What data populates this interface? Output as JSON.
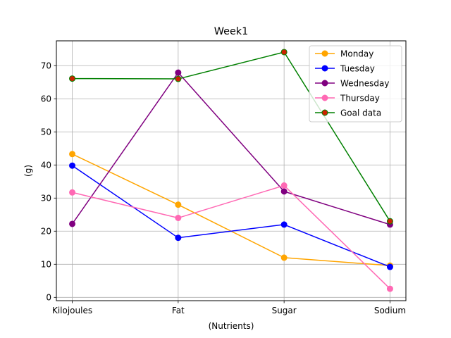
{
  "chart_data": {
    "type": "line",
    "title": "Week1",
    "xlabel": "(Nutrients)",
    "ylabel": "(g)",
    "categories": [
      "Kilojoules",
      "Fat",
      "Sugar",
      "Sodium"
    ],
    "ylim": [
      -1,
      77.5
    ],
    "yticks": [
      0,
      10,
      20,
      30,
      40,
      50,
      60,
      70
    ],
    "grid": true,
    "legend_position": "top-right",
    "series": [
      {
        "name": "Monday",
        "color": "#ffa500",
        "marker_face": "#ffa500",
        "values": [
          43.3,
          28,
          12,
          9.6
        ]
      },
      {
        "name": "Tuesday",
        "color": "#0000ff",
        "marker_face": "#0000ff",
        "values": [
          39.8,
          18,
          22,
          9.2
        ]
      },
      {
        "name": "Wednesday",
        "color": "#800080",
        "marker_face": "#800080",
        "values": [
          22.2,
          67.9,
          32,
          22
        ]
      },
      {
        "name": "Thursday",
        "color": "#ff69b4",
        "marker_face": "#ff69b4",
        "values": [
          31.7,
          24,
          33.8,
          2.6
        ]
      },
      {
        "name": "Goal data",
        "color": "#008000",
        "marker_face": "#cc2200",
        "values": [
          66.1,
          66,
          74.1,
          23
        ]
      }
    ]
  }
}
